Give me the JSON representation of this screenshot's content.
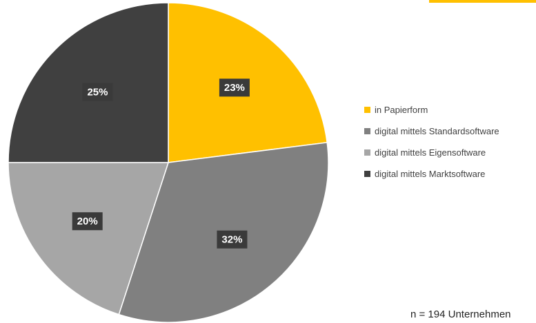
{
  "chart_data": {
    "type": "pie",
    "title": "",
    "start_angle_deg": 0,
    "direction": "clockwise",
    "slices": [
      {
        "label": "in Papierform",
        "value": 23,
        "display": "23%",
        "color": "#FFC000"
      },
      {
        "label": "digital mittels Standardsoftware",
        "value": 32,
        "display": "32%",
        "color": "#808080"
      },
      {
        "label": "digital mittels Eigensoftware",
        "value": 20,
        "display": "20%",
        "color": "#A6A6A6"
      },
      {
        "label": "digital mittels Marktsoftware",
        "value": 25,
        "display": "25%",
        "color": "#404040"
      }
    ],
    "legend": {
      "placement": "right",
      "entries": [
        "in Papierform",
        "digital mittels Standardsoftware",
        "digital mittels Eigensoftware",
        "digital mittels Marktsoftware"
      ]
    },
    "label_background_color": "#3A3A3A"
  },
  "footnote": "n = 194 Unternehmen",
  "accent_color": "#FFC000"
}
